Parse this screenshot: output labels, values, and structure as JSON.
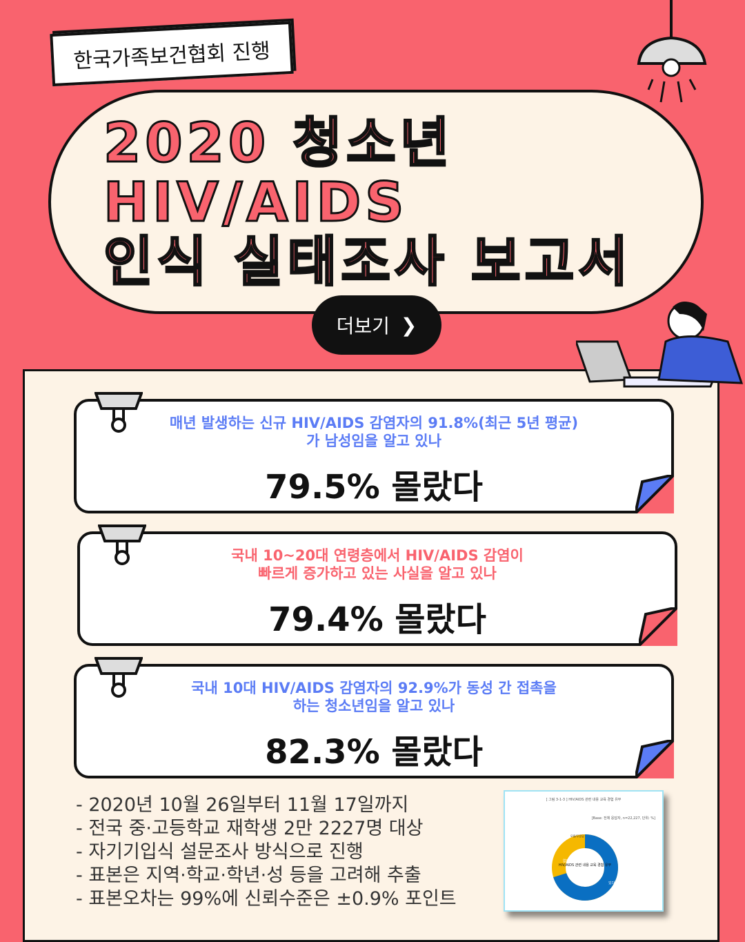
{
  "header": {
    "organizer": "한국가족보건협회 진행",
    "title_lines": [
      "2020 청소년",
      "HIV/AIDS",
      "인식 실태조사 보고서"
    ],
    "more_button": "더보기",
    "more_icon": "chevron-right-icon"
  },
  "colors": {
    "background": "#f9636e",
    "panel": "#fdf3e6",
    "blue": "#5b7cf5",
    "pink": "#f9636e"
  },
  "cards": [
    {
      "question": [
        "매년 발생하는 신규 HIV/AIDS 감염자의 91.8%(최근 5년 평균)",
        "가 남성임을 알고 있나"
      ],
      "answer": "79.5% 몰랐다",
      "color": "#5b7cf5"
    },
    {
      "question": [
        "국내 10~20대 연령층에서 HIV/AIDS 감염이",
        "빠르게 증가하고 있는 사실을 알고 있나"
      ],
      "answer": "79.4% 몰랐다",
      "color": "#f9636e"
    },
    {
      "question": [
        "국내 10대 HIV/AIDS 감염자의 92.9%가 동성 간 접촉을",
        "하는 청소년임을 알고 있나"
      ],
      "answer": "82.3% 몰랐다",
      "color": "#5b7cf5"
    }
  ],
  "notes": [
    "- 2020년 10월 26일부터 11월 17일까지",
    "- 전국 중·고등학교 재학생 2만 2227명 대상",
    "- 자기기입식 설문조사 방식으로 진행",
    "- 표본은 지역·학교·학년·성 등을 고려해 추출",
    "- 표본오차는 99%에 신뢰수준은 ±0.9% 포인트"
  ],
  "report": {
    "title": "[ 그림 3-1-3 ] HIV/AIDS 관련 내용 교육 경험 유무",
    "base": "[Base: 전체 응답자, n=22,227, 단위: %]",
    "center": "HIV/AIDS 관련 내용 교육 경험 유무",
    "slices": [
      {
        "label": "있다",
        "value": 70.1,
        "color": "#0a6fc2"
      },
      {
        "label": "없다",
        "value": 29.5,
        "color": "#f5b800"
      },
      {
        "label": "모름/무응답",
        "value": 0.4,
        "color": "#999999"
      }
    ]
  }
}
